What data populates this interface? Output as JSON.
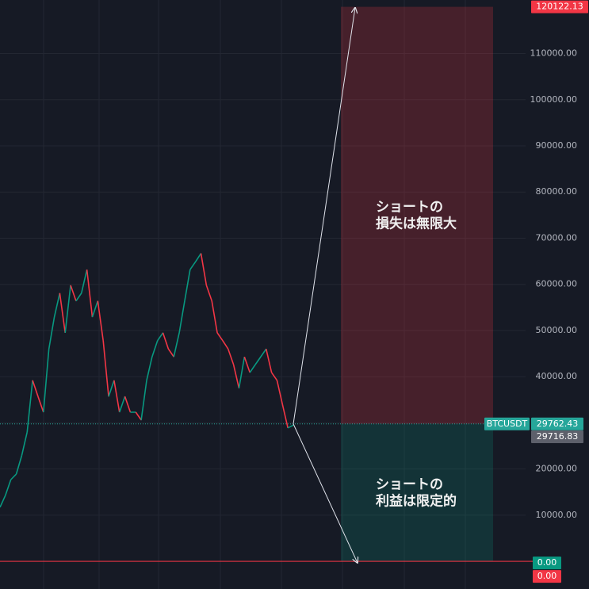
{
  "chart_data": {
    "type": "line",
    "symbol": "BTCUSDT",
    "values": [
      11700,
      14300,
      17700,
      18900,
      22900,
      28000,
      39200,
      35700,
      32300,
      46000,
      52900,
      58100,
      49500,
      59800,
      56400,
      58100,
      63200,
      52900,
      56400,
      47800,
      35700,
      39200,
      32300,
      35700,
      32300,
      32300,
      30600,
      39200,
      44300,
      47800,
      49500,
      46000,
      44300,
      49500,
      56400,
      63200,
      64900,
      66700,
      59800,
      56400,
      49500,
      47800,
      46000,
      42600,
      37500,
      44300,
      40900,
      42600,
      44300,
      46000,
      40900,
      39200,
      34000,
      28900,
      29500
    ],
    "up_color": "#089981",
    "down_color": "#f23645",
    "ylim": [
      -6000,
      121600
    ],
    "yticks": [
      {
        "value": 10000,
        "label": "10000.00"
      },
      {
        "value": 20000,
        "label": "20000.00"
      },
      {
        "value": 30000,
        "label": "30000.00"
      },
      {
        "value": 40000,
        "label": "40000.00"
      },
      {
        "value": 50000,
        "label": "50000.00"
      },
      {
        "value": 60000,
        "label": "60000.00"
      },
      {
        "value": 70000,
        "label": "70000.00"
      },
      {
        "value": 80000,
        "label": "80000.00"
      },
      {
        "value": 90000,
        "label": "90000.00"
      },
      {
        "value": 100000,
        "label": "100000.00"
      },
      {
        "value": 110000,
        "label": "110000.00"
      }
    ],
    "grid": true,
    "position": {
      "entry": 29762.43,
      "stop": 120122.13,
      "second_price": 29716.83,
      "target": {
        "value": 0,
        "label": "0.00"
      },
      "lower_level": {
        "value": 0,
        "label": "0.00"
      },
      "loss_text": [
        "ショートの",
        "損失は無限大"
      ],
      "profit_text": [
        "ショートの",
        "利益は限定的"
      ],
      "loss_color": "#f23645",
      "profit_color": "#089981"
    }
  }
}
